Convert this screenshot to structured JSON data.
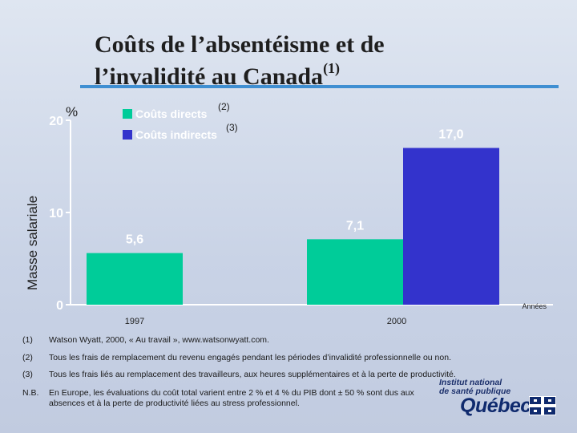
{
  "slide": {
    "title_line1": "Coûts de l’absentéisme et de",
    "title_line2": "l’invalidité au Canada",
    "title_sup": "(1)"
  },
  "chart_data": {
    "type": "bar",
    "unit_label": "%",
    "ylabel": "Masse salariale",
    "xlabel": "Années",
    "ylim": [
      0,
      20
    ],
    "yticks": [
      "0",
      "10",
      "20"
    ],
    "categories": [
      "1997",
      "2000"
    ],
    "series": [
      {
        "name": "Coûts directs",
        "note": "(2)",
        "color": "#00cc99",
        "values": [
          5.6,
          7.1
        ],
        "labels": [
          "5,6",
          "7,1"
        ]
      },
      {
        "name": "Coûts indirects",
        "note": "(3)",
        "color": "#3333cc",
        "values": [
          null,
          17.0
        ],
        "labels": [
          "",
          "17,0"
        ]
      }
    ],
    "legend_position": "top-left"
  },
  "footnotes": [
    {
      "num": "(1)",
      "text": "Watson Wyatt, 2000, « Au travail », www.watsonwyatt.com."
    },
    {
      "num": "(2)",
      "text": "Tous les frais de remplacement du revenu engagés pendant les périodes d’invalidité professionnelle ou non."
    },
    {
      "num": "(3)",
      "text": "Tous les frais liés au remplacement des travailleurs, aux heures supplémentaires et à la perte de productivité."
    },
    {
      "num": "N.B.",
      "text": "En Europe, les évaluations du coût total varient entre 2 % et 4 % du PIB dont ± 50 % sont dus aux absences et à la perte de productivité liées au stress professionnel."
    }
  ],
  "branding": {
    "institute_line1": "Institut national",
    "institute_line2": "de santé publique",
    "quebec": "Québec",
    "flag_color": "#0f2a6e"
  }
}
